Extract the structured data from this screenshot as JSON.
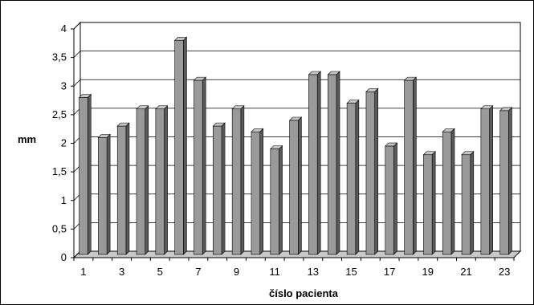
{
  "chart_data": {
    "type": "bar",
    "title": "",
    "xlabel": "číslo pacienta",
    "ylabel": "mm",
    "categories": [
      "1",
      "2",
      "3",
      "4",
      "5",
      "6",
      "7",
      "8",
      "9",
      "10",
      "11",
      "12",
      "13",
      "14",
      "15",
      "16",
      "17",
      "18",
      "19",
      "20",
      "21",
      "22",
      "23"
    ],
    "x_tick_labels_shown": [
      "1",
      "3",
      "5",
      "7",
      "9",
      "11",
      "13",
      "15",
      "17",
      "19",
      "21",
      "23"
    ],
    "values": [
      2.8,
      2.1,
      2.3,
      2.6,
      2.6,
      3.8,
      3.1,
      2.3,
      2.6,
      2.2,
      1.9,
      2.4,
      3.2,
      3.2,
      2.7,
      2.9,
      1.95,
      3.1,
      1.8,
      2.2,
      1.8,
      2.6,
      2.57
    ],
    "ylim": [
      0,
      4
    ],
    "y_ticks": [
      "0",
      "0,5",
      "1",
      "1,5",
      "2",
      "2,5",
      "3",
      "3,5",
      "4"
    ],
    "grid": true,
    "legend": "none",
    "style": "3d-bar",
    "colors": {
      "bar_front": "#9a9a9a",
      "bar_side": "#5a5a5a",
      "bar_top": "#c4c4c4",
      "bar_outline": "#000000",
      "grid": "#000000",
      "wall": "#ffffff",
      "floor": "#c9c9c9",
      "frame": "#000000"
    }
  }
}
